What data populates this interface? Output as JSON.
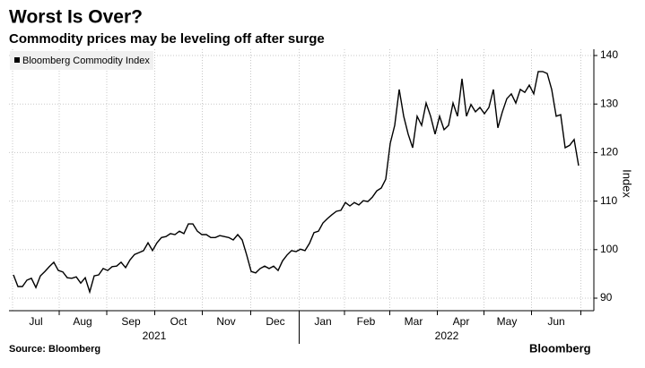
{
  "chart_data": {
    "type": "line",
    "title": "Worst Is Over?",
    "subtitle": "Commodity prices may be leveling off after surge",
    "y_label": "Index",
    "source": "Source: Bloomberg",
    "logo": "Bloomberg",
    "series": [
      {
        "name": "Bloomberg Commodity Index",
        "color": "#000000",
        "values": [
          94.8,
          92.4,
          92.4,
          93.7,
          94.1,
          92.2,
          94.6,
          95.5,
          96.5,
          97.4,
          95.7,
          95.4,
          94.2,
          94.1,
          94.4,
          93.1,
          94.2,
          91.3,
          94.6,
          94.8,
          96.1,
          95.7,
          96.5,
          96.6,
          97.4,
          96.3,
          97.9,
          99.0,
          99.4,
          99.8,
          101.4,
          99.8,
          101.4,
          102.5,
          102.7,
          103.3,
          103.1,
          103.8,
          103.3,
          105.3,
          105.3,
          103.8,
          103.1,
          103.1,
          102.5,
          102.5,
          102.9,
          102.7,
          102.5,
          102.0,
          103.1,
          102.0,
          98.9,
          95.5,
          95.2,
          96.1,
          96.6,
          96.1,
          96.6,
          95.7,
          97.7,
          98.9,
          99.8,
          99.6,
          100.1,
          99.8,
          101.3,
          103.5,
          103.8,
          105.5,
          106.4,
          107.2,
          107.9,
          108.1,
          109.7,
          109.0,
          109.7,
          109.2,
          110.1,
          109.9,
          110.8,
          112.1,
          112.7,
          114.5,
          121.9,
          125.6,
          133.0,
          127.5,
          123.8,
          121.0,
          127.5,
          125.6,
          130.2,
          127.5,
          123.8,
          127.5,
          124.7,
          125.6,
          130.2,
          127.5,
          135.2,
          127.5,
          129.9,
          128.4,
          129.3,
          128.0,
          129.3,
          133.0,
          125.1,
          128.4,
          131.1,
          132.1,
          130.2,
          133.0,
          132.4,
          133.9,
          132.1,
          136.7,
          136.7,
          136.3,
          133.0,
          127.5,
          127.8,
          121.0,
          121.5,
          122.7,
          117.3
        ]
      }
    ],
    "xlim": [
      0,
      126
    ],
    "xticks": [
      {
        "value": 5,
        "label": "Jul"
      },
      {
        "value": 15.4,
        "label": "Aug"
      },
      {
        "value": 26.2,
        "label": "Sep"
      },
      {
        "value": 36.8,
        "label": "Oct"
      },
      {
        "value": 47.4,
        "label": "Nov"
      },
      {
        "value": 58.4,
        "label": "Dec"
      },
      {
        "value": 69,
        "label": "Jan"
      },
      {
        "value": 78.6,
        "label": "Feb"
      },
      {
        "value": 89.2,
        "label": "Mar"
      },
      {
        "value": 99.8,
        "label": "Apr"
      },
      {
        "value": 110,
        "label": "May"
      },
      {
        "value": 121,
        "label": "Jun"
      }
    ],
    "year_labels": [
      {
        "value": 31.4,
        "label": "2021"
      },
      {
        "value": 96.6,
        "label": "2022"
      }
    ],
    "ylim": [
      90,
      140
    ],
    "yticks": [
      90,
      100,
      110,
      120,
      130,
      140
    ],
    "grid": true,
    "legend": "top-left"
  }
}
